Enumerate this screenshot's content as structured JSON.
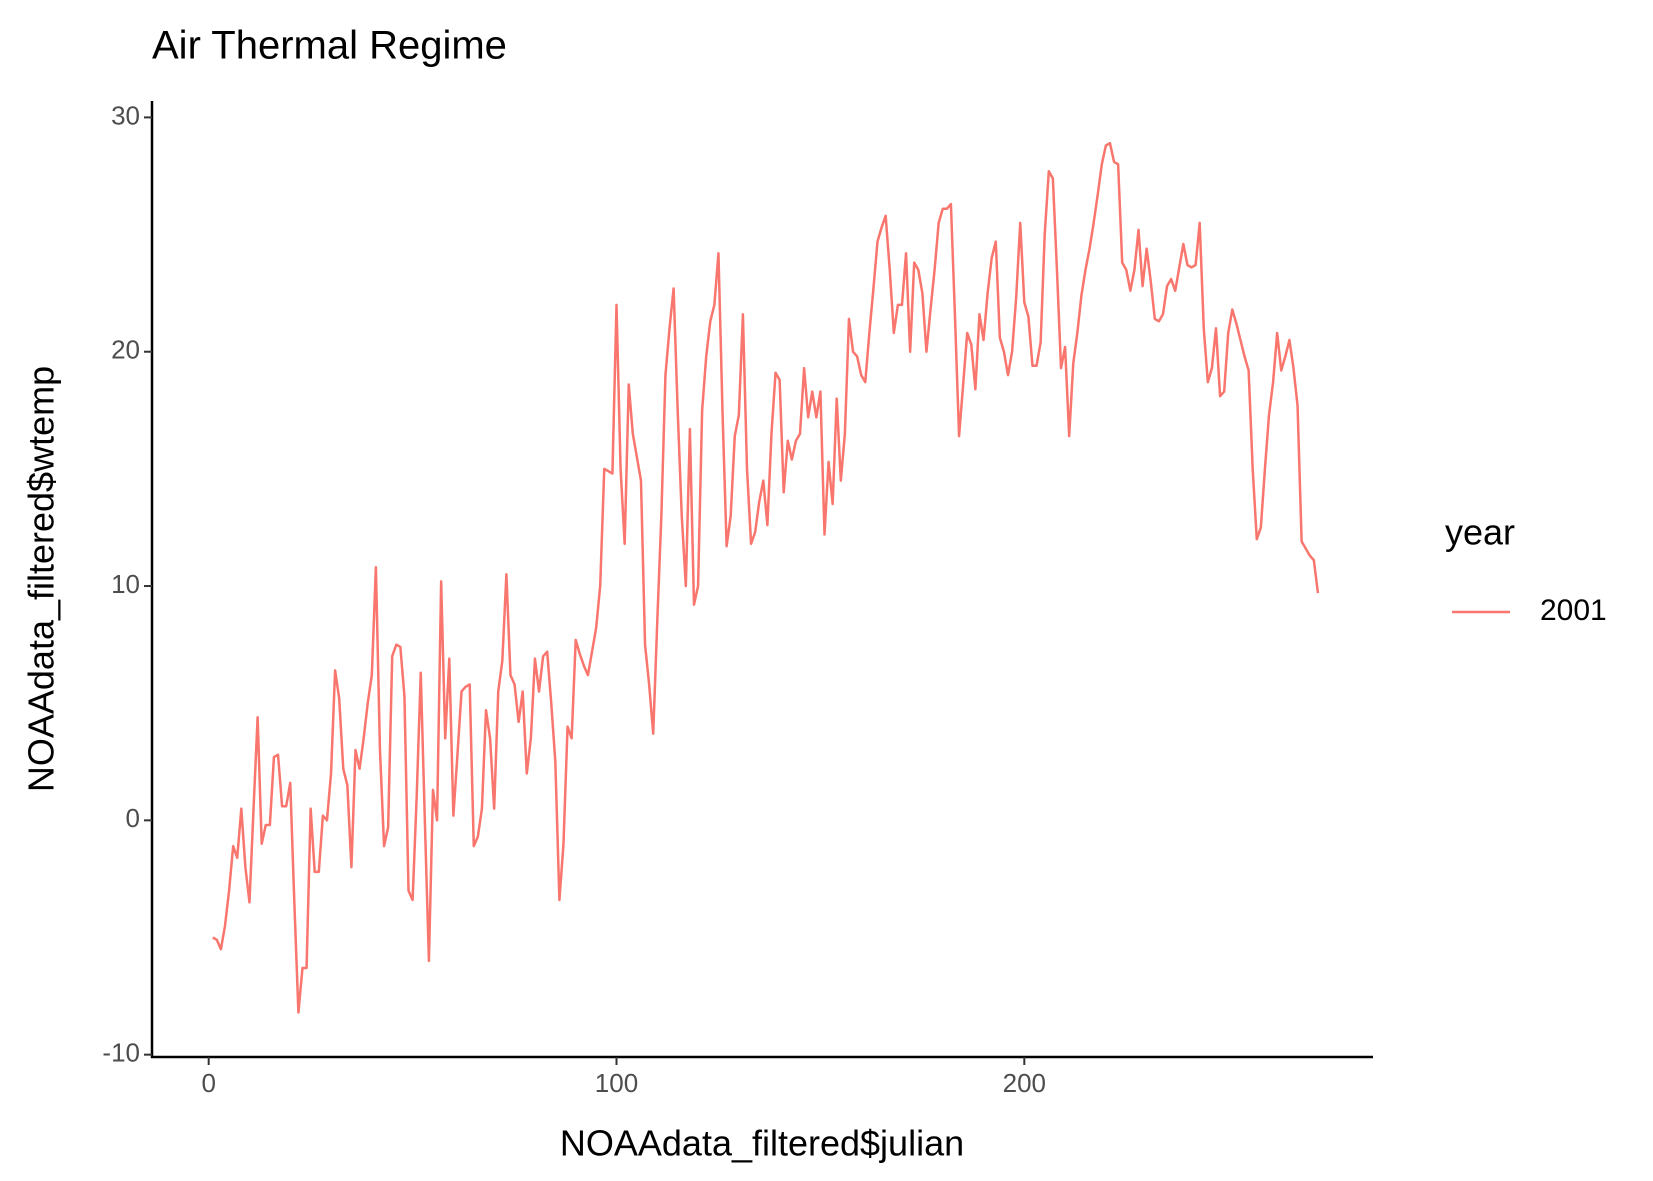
{
  "chart_data": {
    "type": "line",
    "title": "Air Thermal Regime",
    "x_label": "NOAAdata_filtered$julian",
    "y_label": "NOAAdata_filtered$wtemp",
    "legend_title": "year",
    "legend_position": "right",
    "grid": false,
    "xlim": [
      -13.9,
      285.5
    ],
    "ylim": [
      -10.1,
      30.7
    ],
    "xticks": [
      0,
      100,
      200
    ],
    "yticks": [
      -10,
      0,
      10,
      20,
      30
    ],
    "x": [
      1,
      2,
      3,
      4,
      5,
      6,
      7,
      8,
      9,
      10,
      11,
      12,
      13,
      14,
      15,
      16,
      17,
      18,
      19,
      20,
      21,
      22,
      23,
      24,
      25,
      26,
      27,
      28,
      29,
      30,
      31,
      32,
      33,
      34,
      35,
      36,
      37,
      38,
      39,
      40,
      41,
      42,
      43,
      44,
      45,
      46,
      47,
      48,
      49,
      50,
      51,
      52,
      53,
      54,
      55,
      56,
      57,
      58,
      59,
      60,
      61,
      62,
      63,
      64,
      65,
      66,
      67,
      68,
      69,
      70,
      71,
      72,
      73,
      74,
      75,
      76,
      77,
      78,
      79,
      80,
      81,
      82,
      83,
      84,
      85,
      86,
      87,
      88,
      89,
      90,
      91,
      92,
      93,
      94,
      95,
      96,
      97,
      98,
      99,
      100,
      101,
      102,
      103,
      104,
      105,
      106,
      107,
      108,
      109,
      110,
      111,
      112,
      113,
      114,
      115,
      116,
      117,
      118,
      119,
      120,
      121,
      122,
      123,
      124,
      125,
      126,
      127,
      128,
      129,
      130,
      131,
      132,
      133,
      134,
      135,
      136,
      137,
      138,
      139,
      140,
      141,
      142,
      143,
      144,
      145,
      146,
      147,
      148,
      149,
      150,
      151,
      152,
      153,
      154,
      155,
      156,
      157,
      158,
      159,
      160,
      161,
      162,
      163,
      164,
      165,
      166,
      167,
      168,
      169,
      170,
      171,
      172,
      173,
      174,
      175,
      176,
      177,
      178,
      179,
      180,
      181,
      182,
      183,
      184,
      185,
      186,
      187,
      188,
      189,
      190,
      191,
      192,
      193,
      194,
      195,
      196,
      197,
      198,
      199,
      200,
      201,
      202,
      203,
      204,
      205,
      206,
      207,
      208,
      209,
      210,
      211,
      212,
      213,
      214,
      215,
      216,
      217,
      218,
      219,
      220,
      221,
      222,
      223,
      224,
      225,
      226,
      227,
      228,
      229,
      230,
      231,
      232,
      233,
      234,
      235,
      236,
      237,
      238,
      239,
      240,
      241,
      242,
      243,
      244,
      245,
      246,
      247,
      248,
      249,
      250,
      251,
      252,
      253,
      254,
      255,
      256,
      257,
      258,
      259,
      260,
      261,
      262,
      263,
      264,
      265,
      266,
      267,
      268,
      269,
      270,
      271,
      272
    ],
    "series": [
      {
        "name": "2001",
        "color": "#F8766D",
        "values": [
          -5,
          -5.1,
          -5.5,
          -4.5,
          -3,
          -1.1,
          -1.6,
          0.5,
          -2,
          -3.5,
          0.5,
          4.4,
          -1,
          -0.2,
          -0.2,
          2.7,
          2.8,
          0.6,
          0.6,
          1.6,
          -3.5,
          -8.2,
          -6.3,
          -6.3,
          0.5,
          -2.2,
          -2.2,
          0.2,
          0,
          2,
          6.4,
          5.2,
          2.2,
          1.5,
          -2,
          3,
          2.2,
          3.5,
          5,
          6.2,
          10.8,
          3,
          -1.1,
          -0.3,
          7,
          7.5,
          7.4,
          5.3,
          -3,
          -3.4,
          1,
          6.3,
          0,
          -6,
          1.3,
          0,
          10.2,
          3.5,
          6.9,
          0.2,
          2.8,
          5.5,
          5.7,
          5.8,
          -1.1,
          -0.7,
          0.5,
          4.7,
          3.5,
          0.5,
          5.5,
          6.8,
          10.5,
          6.2,
          5.8,
          4.2,
          5.5,
          2,
          3.5,
          6.9,
          5.5,
          7,
          7.2,
          5,
          2.5,
          -3.4,
          -1,
          4,
          3.5,
          7.7,
          7.1,
          6.6,
          6.2,
          7.2,
          8.2,
          10,
          15,
          14.9,
          14.8,
          22,
          15,
          11.8,
          18.6,
          16.5,
          15.5,
          14.5,
          7.5,
          5.8,
          3.7,
          8.5,
          13,
          19,
          21,
          22.7,
          17.5,
          13,
          10,
          16.7,
          9.2,
          10,
          17.5,
          19.8,
          21.3,
          22,
          24.2,
          17.4,
          11.7,
          13,
          16.4,
          17.3,
          21.6,
          15,
          11.8,
          12.3,
          13.6,
          14.5,
          12.6,
          16.5,
          19.1,
          18.8,
          14,
          16.2,
          15.4,
          16.2,
          16.5,
          19.3,
          17.2,
          18.3,
          17.2,
          18.3,
          12.2,
          15.3,
          13.5,
          18,
          14.5,
          16.5,
          21.4,
          20,
          19.8,
          19,
          18.7,
          20.8,
          22.7,
          24.7,
          25.3,
          25.8,
          23.5,
          20.8,
          22,
          22,
          24.2,
          20,
          23.8,
          23.5,
          22.5,
          20,
          21.8,
          23.5,
          25.5,
          26.1,
          26.1,
          26.3,
          21.5,
          16.4,
          18.6,
          20.8,
          20.3,
          18.4,
          21.6,
          20.5,
          22.5,
          24,
          24.7,
          20.6,
          20,
          19,
          20,
          22.3,
          25.5,
          22.1,
          21.5,
          19.4,
          19.4,
          20.4,
          25,
          27.7,
          27.4,
          23.5,
          19.3,
          20.2,
          16.4,
          19.5,
          20.8,
          22.4,
          23.5,
          24.4,
          25.5,
          26.7,
          28,
          28.8,
          28.9,
          28.1,
          28,
          23.8,
          23.5,
          22.6,
          23.5,
          25.2,
          22.8,
          24.4,
          23,
          21.4,
          21.3,
          21.6,
          22.8,
          23.1,
          22.6,
          23.6,
          24.6,
          23.7,
          23.6,
          23.7,
          25.5,
          21,
          18.7,
          19.3,
          21,
          18.1,
          18.3,
          20.8,
          21.8,
          21.2,
          20.5,
          19.8,
          19.2,
          15,
          12,
          12.5,
          15,
          17.3,
          18.7,
          20.8,
          19.2,
          19.8,
          20.5,
          19.3,
          17.7,
          11.9,
          11.6,
          11.3,
          11.1,
          9.7
        ]
      }
    ]
  }
}
